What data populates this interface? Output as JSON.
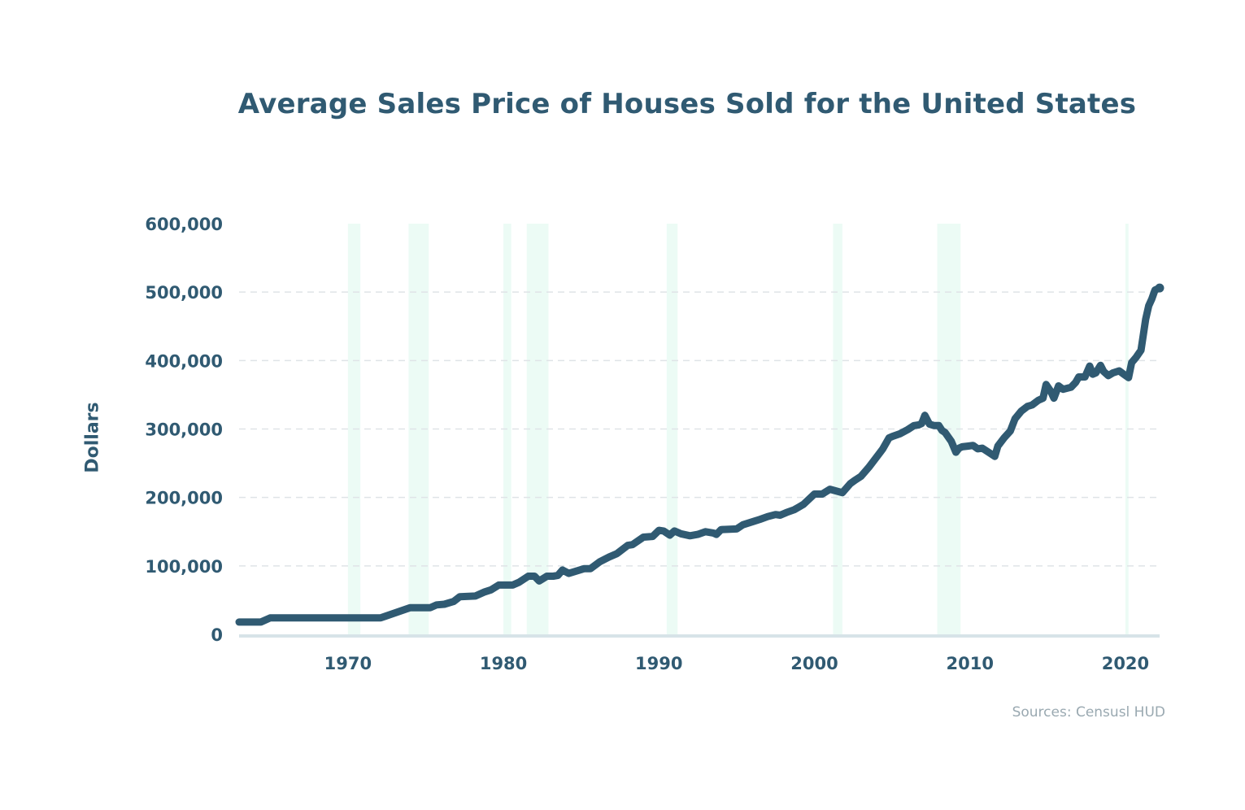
{
  "chart_data": {
    "type": "line",
    "title": "Average Sales Price of Houses Sold for the United States",
    "ylabel": "Dollars",
    "xlabel": "",
    "source": "Sources: Censusl HUD",
    "xlim": [
      1963,
      2022.2
    ],
    "ylim": [
      0,
      600000
    ],
    "y_ticks": [
      0,
      100000,
      200000,
      300000,
      400000,
      500000,
      600000
    ],
    "y_tick_labels": [
      "0",
      "100,000",
      "200,000",
      "300,000",
      "400,000",
      "500,000",
      "600,000"
    ],
    "x_ticks": [
      1970,
      1980,
      1990,
      2000,
      2010,
      2020
    ],
    "x_tick_labels": [
      "1970",
      "1980",
      "1990",
      "2000",
      "2010",
      "2020"
    ],
    "grid": true,
    "recessions": [
      [
        1970.0,
        1970.8
      ],
      [
        1973.9,
        1975.2
      ],
      [
        1980.0,
        1980.5
      ],
      [
        1981.5,
        1982.9
      ],
      [
        1990.5,
        1991.2
      ],
      [
        2001.2,
        2001.8
      ],
      [
        2007.9,
        2009.4
      ],
      [
        2020.0,
        2020.2
      ]
    ],
    "series": [
      {
        "x": [
          1963.0,
          1964.4,
          1965.0,
          1972.1,
          1974.0,
          1975.3,
          1975.7,
          1976.2,
          1976.8,
          1977.2,
          1978.2,
          1978.8,
          1979.2,
          1979.7,
          1980.6,
          1981.0,
          1981.6,
          1982.0,
          1982.3,
          1982.8,
          1983.2,
          1983.5,
          1983.8,
          1984.2,
          1985.2,
          1985.6,
          1986.2,
          1986.8,
          1987.3,
          1988.0,
          1988.3,
          1989.0,
          1989.6,
          1990.0,
          1990.3,
          1990.7,
          1991.0,
          1991.4,
          1992.0,
          1992.5,
          1993.0,
          1993.5,
          1993.7,
          1994.0,
          1995.0,
          1995.4,
          1996.1,
          1996.5,
          1997.0,
          1997.5,
          1997.8,
          1998.2,
          1998.7,
          1999.0,
          1999.3,
          2000.0,
          2000.5,
          2001.0,
          2001.8,
          2002.3,
          2002.6,
          2003.0,
          2003.5,
          2004.2,
          2004.4,
          2004.8,
          2005.0,
          2005.5,
          2006.0,
          2006.4,
          2006.7,
          2006.9,
          2007.1,
          2007.4,
          2007.7,
          2008.0,
          2008.2,
          2008.4,
          2008.8,
          2009.1,
          2009.3,
          2009.5,
          2009.9,
          2010.2,
          2010.5,
          2010.8,
          2011.2,
          2011.6,
          2011.8,
          2012.2,
          2012.6,
          2012.9,
          2013.3,
          2013.7,
          2014.0,
          2014.4,
          2014.7,
          2014.9,
          2015.2,
          2015.4,
          2015.7,
          2016.0,
          2016.5,
          2016.8,
          2017.0,
          2017.4,
          2017.7,
          2017.9,
          2018.1,
          2018.4,
          2018.6,
          2018.9,
          2019.2,
          2019.6,
          2019.9,
          2020.2,
          2020.4,
          2020.7,
          2021.0,
          2021.2,
          2021.3,
          2021.5,
          2021.7,
          2021.9,
          2022.2
        ],
        "values": [
          18000,
          18000,
          24000,
          24000,
          39000,
          39000,
          43000,
          44000,
          48000,
          55000,
          56000,
          62000,
          65000,
          72000,
          72000,
          76000,
          85000,
          85000,
          78000,
          85000,
          85000,
          86000,
          94000,
          89000,
          96000,
          96000,
          106000,
          113000,
          118000,
          130000,
          131000,
          142000,
          143000,
          152000,
          151000,
          145000,
          151000,
          147000,
          144000,
          146000,
          150000,
          148000,
          146000,
          153000,
          154000,
          160000,
          165000,
          168000,
          172000,
          175000,
          174000,
          178000,
          182000,
          186000,
          190000,
          205000,
          205000,
          212000,
          207000,
          220000,
          225000,
          231000,
          244000,
          265000,
          271000,
          287000,
          289000,
          293000,
          299000,
          305000,
          306000,
          308000,
          320000,
          307000,
          305000,
          305000,
          298000,
          295000,
          282000,
          266000,
          272000,
          274000,
          275000,
          276000,
          271000,
          272000,
          266000,
          260000,
          275000,
          287000,
          297000,
          315000,
          326000,
          333000,
          335000,
          342000,
          345000,
          365000,
          355000,
          345000,
          363000,
          358000,
          361000,
          368000,
          376000,
          376000,
          392000,
          380000,
          382000,
          393000,
          384000,
          378000,
          382000,
          385000,
          380000,
          375000,
          397000,
          405000,
          415000,
          445000,
          460000,
          480000,
          490000,
          503000,
          506000
        ]
      }
    ]
  }
}
